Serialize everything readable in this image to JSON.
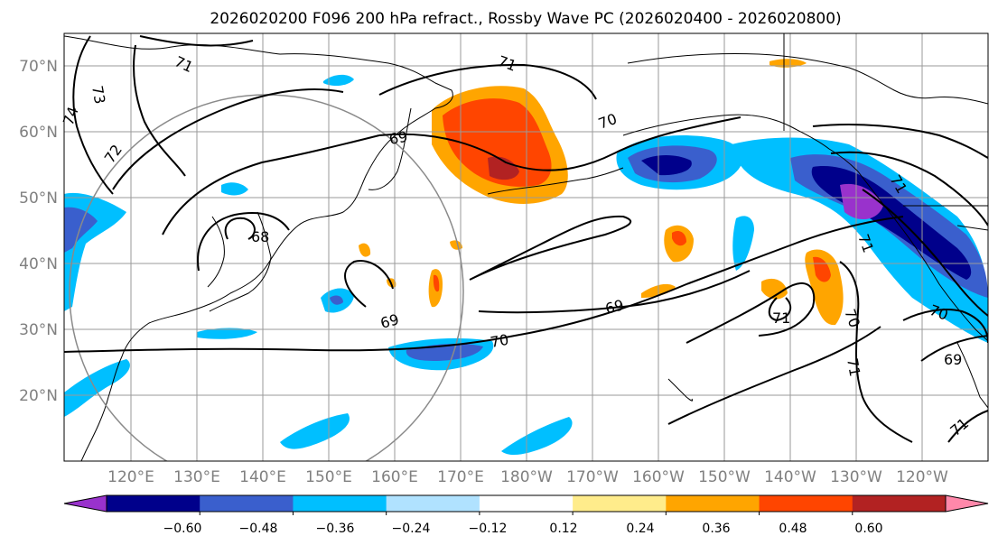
{
  "title": "2026020200 F096 200 hPa refract., Rossby Wave PC (2026020400 - 2026020800)",
  "map": {
    "lat_labels": [
      "70°N",
      "60°N",
      "50°N",
      "40°N",
      "30°N",
      "20°N"
    ],
    "lon_labels": [
      "120°E",
      "130°E",
      "140°E",
      "150°E",
      "160°E",
      "170°E",
      "180°W",
      "170°W",
      "160°W",
      "150°W",
      "140°W",
      "130°W",
      "120°W"
    ],
    "contour_labels": [
      "71",
      "73",
      "74",
      "72",
      "71",
      "70",
      "69",
      "68",
      "69",
      "69",
      "70",
      "71",
      "70",
      "71",
      "71",
      "69",
      "70",
      "71",
      "71"
    ],
    "shading_colors": [
      "#9932cc",
      "#00008b",
      "#3a5fcd",
      "#00bfff",
      "#b0e2ff",
      "#ffffff",
      "#ffec8b",
      "#ffa500",
      "#ff4500",
      "#b22222",
      "#ff88aa"
    ]
  },
  "colorbar": {
    "ticks": [
      "−0.60",
      "−0.48",
      "−0.36",
      "−0.24",
      "−0.12",
      "0.12",
      "0.24",
      "0.36",
      "0.48",
      "0.60"
    ],
    "colors": [
      "#9932cc",
      "#00008b",
      "#3a5fcd",
      "#00bfff",
      "#b0e2ff",
      "#ffffff",
      "#ffec8b",
      "#ffa500",
      "#ff4500",
      "#b22222",
      "#ff88aa"
    ]
  }
}
